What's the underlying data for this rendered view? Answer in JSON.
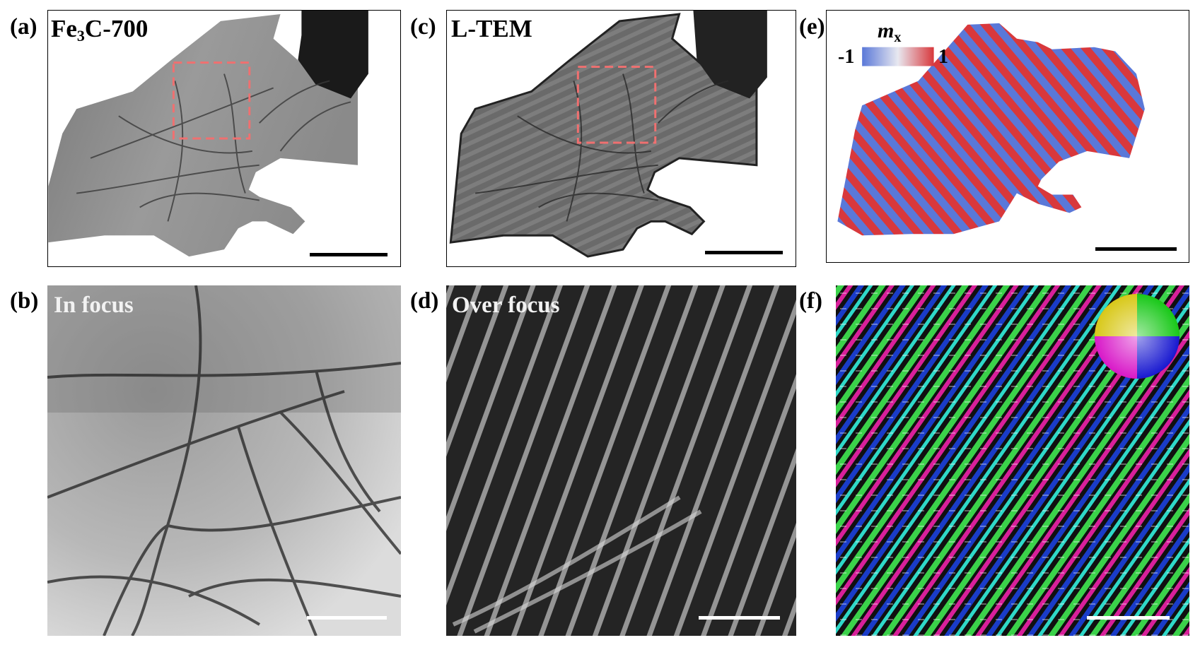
{
  "panels": {
    "a": {
      "letter": "(a)",
      "label_main": "Fe",
      "label_sub": "3",
      "label_rest": "C-700"
    },
    "b": {
      "letter": "(b)",
      "label": "In focus"
    },
    "c": {
      "letter": "(c)",
      "label": "L-TEM"
    },
    "d": {
      "letter": "(d)",
      "label": "Over focus"
    },
    "e": {
      "letter": "(e)",
      "colorbar_title": "m",
      "colorbar_title_sub": "x",
      "colorbar_min": "-1",
      "colorbar_max": "1"
    },
    "f": {
      "letter": "(f)"
    }
  },
  "colors": {
    "highlight_box": "#f07070",
    "mx_negative": "#5a78d8",
    "mx_positive": "#d8383c"
  }
}
